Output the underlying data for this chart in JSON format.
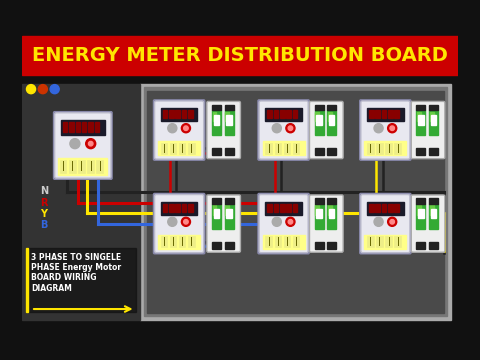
{
  "title": "ENERGY METER DISTRIBUTION BOARD",
  "title_color": "#FFE600",
  "title_bg": "#CC0000",
  "bg_outer": "#111111",
  "bg_panel_outer": "#888888",
  "bg_panel_inner": "#555555",
  "bg_board": "#4a4a4a",
  "subtitle": "3 PHASE TO SINGELE\nPHASE Energy Motor\nBOARD WIRING\nDIAGRAM",
  "subtitle_color": "#ffffff",
  "subtitle_box_color": "#FFE600",
  "phase_labels": [
    "N",
    "R",
    "Y",
    "B"
  ],
  "phase_label_colors": [
    "#cccccc",
    "#cc0000",
    "#FFE600",
    "#3366dd"
  ],
  "dot_colors": [
    "#FFE600",
    "#cc3300",
    "#3366dd"
  ],
  "wire_red": "#cc0000",
  "wire_black": "#222222",
  "wire_yellow": "#FFE600",
  "wire_blue": "#3366dd",
  "meter_bg": "#d8d8e8",
  "meter_face": "#e8e8f0",
  "meter_display_bg": "#1a1a2a",
  "meter_display_seg": "#880000",
  "meter_dot_red": "#cc0000",
  "meter_dot_gray": "#aaaaaa",
  "meter_terminal": "#ffff88",
  "meter_terminal_screw": "#cccc44",
  "meter_shadow": "#8888aa",
  "breaker_body": "#eeeeee",
  "breaker_green": "#33aa33",
  "breaker_green_light": "#66cc44",
  "breaker_black_term": "#222222",
  "arrow_color": "#FFE600"
}
